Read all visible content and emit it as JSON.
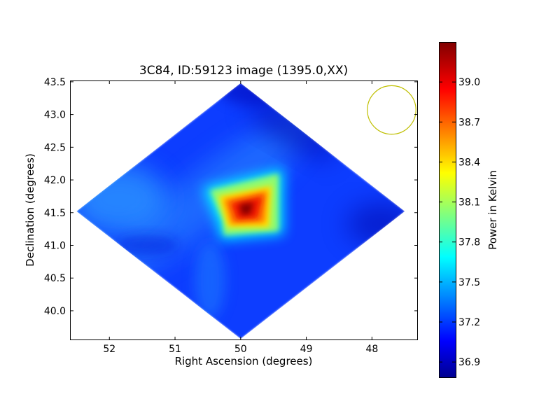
{
  "chart_data": {
    "type": "heatmap",
    "title": "3C84, ID:59123 image (1395.0,XX)",
    "xlabel": "Right Ascension (degrees)",
    "ylabel": "Declination (degrees)",
    "colorbar_label": "Power in Kelvin",
    "xlim": [
      52.6,
      47.3
    ],
    "ylim": [
      39.55,
      43.52
    ],
    "x_ticks": [
      {
        "value": 52,
        "label": "52"
      },
      {
        "value": 51,
        "label": "51"
      },
      {
        "value": 50,
        "label": "50"
      },
      {
        "value": 49,
        "label": "49"
      },
      {
        "value": 48,
        "label": "48"
      }
    ],
    "y_ticks": [
      {
        "value": 43.5,
        "label": "43.5"
      },
      {
        "value": 43.0,
        "label": "43.0"
      },
      {
        "value": 42.5,
        "label": "42.5"
      },
      {
        "value": 42.0,
        "label": "42.0"
      },
      {
        "value": 41.5,
        "label": "41.5"
      },
      {
        "value": 41.0,
        "label": "41.0"
      },
      {
        "value": 40.5,
        "label": "40.5"
      },
      {
        "value": 40.0,
        "label": "40.0"
      }
    ],
    "colorbar_range": [
      36.78,
      39.3
    ],
    "colorbar_ticks": [
      {
        "value": 36.9,
        "label": "36.9"
      },
      {
        "value": 37.2,
        "label": "37.2"
      },
      {
        "value": 37.5,
        "label": "37.5"
      },
      {
        "value": 37.8,
        "label": "37.8"
      },
      {
        "value": 38.1,
        "label": "38.1"
      },
      {
        "value": 38.4,
        "label": "38.4"
      },
      {
        "value": 38.7,
        "label": "38.7"
      },
      {
        "value": 39.0,
        "label": "39.0"
      }
    ],
    "colormap": "jet",
    "map_region": {
      "shape": "diamond",
      "vertices": [
        [
          50.0,
          43.48
        ],
        [
          52.5,
          41.52
        ],
        [
          50.0,
          39.57
        ],
        [
          47.5,
          41.52
        ]
      ]
    },
    "peak": {
      "x": 49.95,
      "y": 41.5,
      "value": 39.3
    },
    "background_level": 37.1,
    "beam_circle": {
      "x": 47.7,
      "y": 43.07,
      "radius_deg": 0.37,
      "color": "#bfbf00"
    }
  }
}
